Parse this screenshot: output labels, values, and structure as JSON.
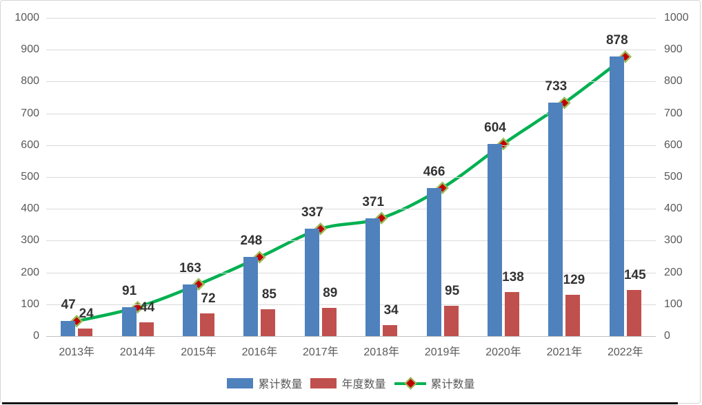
{
  "chart_data": {
    "type": "bar",
    "subtype": "combo-bar-line-dual-axis",
    "categories": [
      "2013年",
      "2014年",
      "2015年",
      "2016年",
      "2017年",
      "2018年",
      "2019年",
      "2020年",
      "2021年",
      "2022年"
    ],
    "series": [
      {
        "name": "累计数量",
        "type": "bar",
        "color": "#4F81BD",
        "values": [
          47,
          91,
          163,
          248,
          337,
          371,
          466,
          604,
          733,
          878
        ]
      },
      {
        "name": "年度数量",
        "type": "bar",
        "color": "#C0504D",
        "values": [
          24,
          44,
          72,
          85,
          89,
          34,
          95,
          138,
          129,
          145
        ]
      },
      {
        "name": "累计数量",
        "type": "line",
        "color": "#00B050",
        "smooth": true,
        "marker": {
          "shape": "diamond",
          "fill": "#C00000",
          "border": "#9BBB59"
        },
        "values": [
          47,
          91,
          163,
          248,
          337,
          371,
          466,
          604,
          733,
          878
        ]
      }
    ],
    "title": "",
    "xlabel": "",
    "ylabel": "",
    "y_axis_left": {
      "min": 0,
      "max": 1000,
      "step": 100,
      "ticks": [
        0,
        100,
        200,
        300,
        400,
        500,
        600,
        700,
        800,
        900,
        1000
      ]
    },
    "y_axis_right": {
      "min": 0,
      "max": 1000,
      "step": 100,
      "ticks": [
        0,
        100,
        200,
        300,
        400,
        500,
        600,
        700,
        800,
        900,
        1000
      ]
    },
    "grid": true,
    "gridline_color": "#D9D9D9",
    "axis_text_color": "#595959",
    "data_label_color": "#333333",
    "legend_position": "bottom"
  },
  "legend": {
    "items": [
      {
        "label": "累计数量",
        "swatch": "bar",
        "color": "#4F81BD"
      },
      {
        "label": "年度数量",
        "swatch": "bar",
        "color": "#C0504D"
      },
      {
        "label": "累计数量",
        "swatch": "line",
        "line_color": "#00B050",
        "marker_fill": "#C00000",
        "marker_border": "#9BBB59"
      }
    ]
  }
}
